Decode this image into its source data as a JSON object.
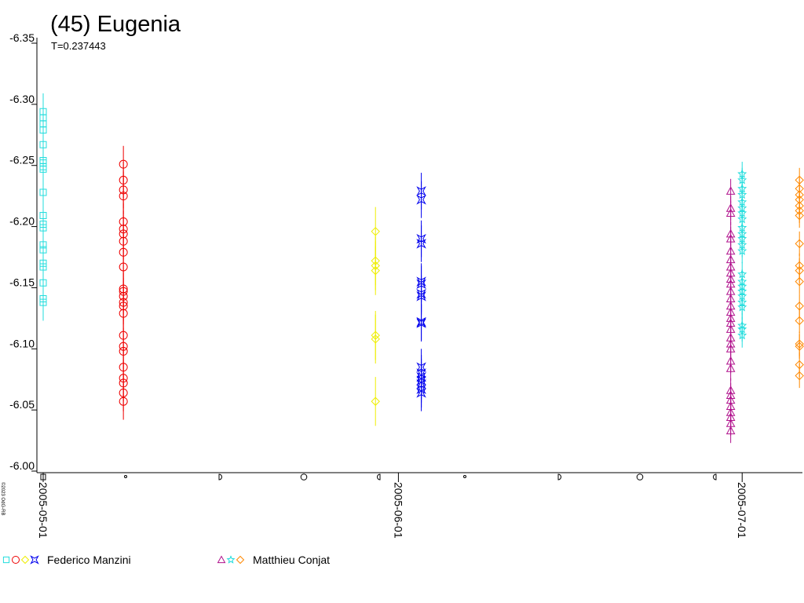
{
  "chart_data": {
    "type": "scatter",
    "title": "(45) Eugenia",
    "subtitle": "T=0.237443",
    "credit": "©2023 OdG-RB",
    "ylim": [
      -6.0,
      -6.35
    ],
    "yticks": [
      -6.35,
      {
        "value": -6.3,
        "label": "-6.30"
      },
      -6.25,
      {
        "value": -6.2,
        "label": "-6.20"
      },
      -6.15,
      {
        "value": -6.1,
        "label": "-6.10"
      },
      -6.05,
      {
        "value": -6.0,
        "label": "-6.00"
      }
    ],
    "xlim": [
      "2005-04-30",
      "2005-07-06"
    ],
    "xticks": [
      "2005-05-01",
      "2005-06-01",
      "2005-07-01"
    ],
    "observers": [
      {
        "name": "Federico Manzini",
        "series": [
          {
            "color": "#22dddd",
            "marker": "square",
            "x": "2005-05-01",
            "error": 0.015,
            "values": [
              -6.294,
              -6.289,
              -6.284,
              -6.279,
              -6.267,
              -6.254,
              -6.252,
              -6.249,
              -6.247,
              -6.228,
              -6.209,
              -6.202,
              -6.199,
              -6.185,
              -6.181,
              -6.17,
              -6.167,
              -6.154,
              -6.141,
              -6.138
            ]
          },
          {
            "color": "#ee0000",
            "marker": "circle",
            "x": "2005-05-08",
            "error": 0.015,
            "values": [
              -6.251,
              -6.238,
              -6.23,
              -6.225,
              -6.204,
              -6.198,
              -6.194,
              -6.188,
              -6.179,
              -6.167,
              -6.149,
              -6.147,
              -6.143,
              -6.138,
              -6.135,
              -6.129,
              -6.111,
              -6.102,
              -6.098,
              -6.085,
              -6.076,
              -6.072,
              -6.064,
              -6.057
            ]
          },
          {
            "color": "#eeee00",
            "marker": "diamond",
            "x": "2005-05-30",
            "error": 0.02,
            "values": [
              -6.196,
              -6.172,
              -6.168,
              -6.164,
              -6.111,
              -6.108,
              -6.057
            ]
          },
          {
            "color": "#0000ee",
            "marker": "cross",
            "x": "2005-06-03",
            "error": 0.015,
            "values": [
              -6.229,
              -6.222,
              -6.19,
              -6.186,
              -6.155,
              -6.153,
              -6.145,
              -6.143,
              -6.122,
              -6.121,
              -6.085,
              -6.08,
              -6.077,
              -6.074,
              -6.071,
              -6.067,
              -6.064
            ]
          }
        ]
      },
      {
        "name": "Matthieu Conjat",
        "series": [
          {
            "color": "#b0108c",
            "marker": "triangle",
            "x": "2005-06-30",
            "error": 0.01,
            "values": [
              -6.229,
              -6.215,
              -6.211,
              -6.194,
              -6.19,
              -6.18,
              -6.173,
              -6.167,
              -6.162,
              -6.157,
              -6.153,
              -6.147,
              -6.141,
              -6.135,
              -6.13,
              -6.125,
              -6.121,
              -6.116,
              -6.109,
              -6.104,
              -6.1,
              -6.09,
              -6.084,
              -6.066,
              -6.062,
              -6.058,
              -6.053,
              -6.048,
              -6.044,
              -6.039,
              -6.033
            ]
          },
          {
            "color": "#22dddd",
            "marker": "star",
            "x": "2005-07-01",
            "error": 0.01,
            "values": [
              -6.243,
              -6.238,
              -6.231,
              -6.226,
              -6.22,
              -6.215,
              -6.211,
              -6.206,
              -6.199,
              -6.194,
              -6.19,
              -6.185,
              -6.18,
              -6.161,
              -6.155,
              -6.151,
              -6.147,
              -6.143,
              -6.138,
              -6.134,
              -6.119,
              -6.116,
              -6.111
            ]
          },
          {
            "color": "#ff8800",
            "marker": "diamond",
            "x": "2005-07-06",
            "error": 0.01,
            "values": [
              -6.238,
              -6.231,
              -6.226,
              -6.222,
              -6.217,
              -6.213,
              -6.209,
              -6.186,
              -6.168,
              -6.164,
              -6.155,
              -6.135,
              -6.123,
              -6.104,
              -6.102,
              -6.087,
              -6.078
            ]
          }
        ]
      }
    ]
  }
}
